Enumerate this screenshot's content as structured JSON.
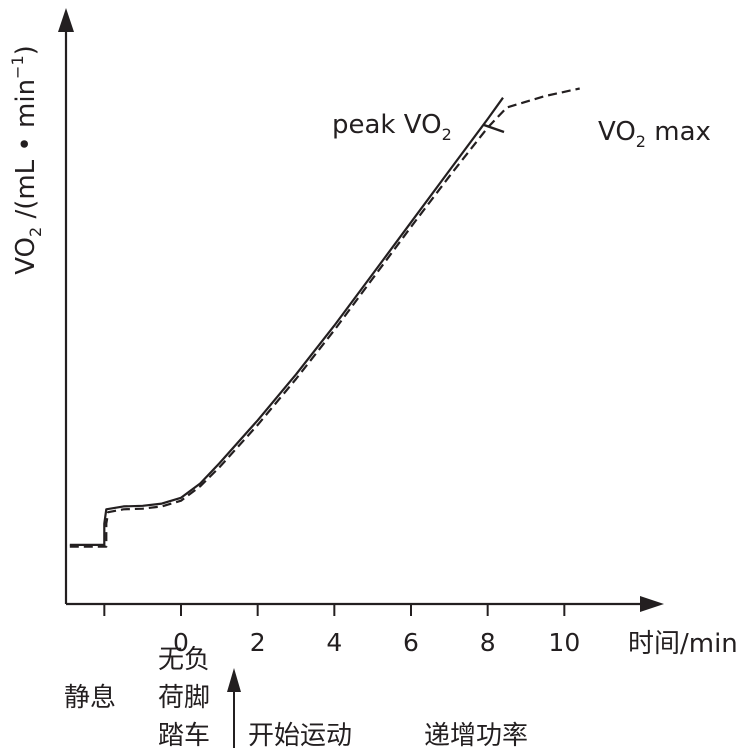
{
  "chart_data": {
    "type": "line",
    "xlabel": "时间/min",
    "ylabel": {
      "main": "VO",
      "sub": "2",
      "unit": " /(mL • min",
      "sup": "−1",
      "close": ")"
    },
    "xlim": [
      -3.0,
      12.6
    ],
    "ylim": [
      0,
      10
    ],
    "x_ticks": [
      0,
      2,
      4,
      6,
      8,
      10
    ],
    "x_tick_labels": [
      "0",
      "2",
      "4",
      "6",
      "8",
      "10"
    ],
    "grid": false,
    "series": [
      {
        "name": "peak VO2",
        "style": "solid",
        "points": [
          [
            -2.9,
            1.03
          ],
          [
            -2.0,
            1.03
          ],
          [
            -2.0,
            1.4
          ],
          [
            -1.95,
            1.65
          ],
          [
            -1.5,
            1.7
          ],
          [
            -1.0,
            1.71
          ],
          [
            -0.5,
            1.75
          ],
          [
            0.0,
            1.85
          ],
          [
            0.5,
            2.1
          ],
          [
            1.0,
            2.45
          ],
          [
            2.0,
            3.2
          ],
          [
            3.0,
            4.0
          ],
          [
            4.0,
            4.85
          ],
          [
            5.0,
            5.75
          ],
          [
            6.0,
            6.65
          ],
          [
            7.0,
            7.55
          ],
          [
            8.0,
            8.45
          ],
          [
            8.4,
            8.82
          ]
        ]
      },
      {
        "name": "VO2 max",
        "style": "dashed",
        "points": [
          [
            -2.9,
            1.0
          ],
          [
            -1.95,
            1.0
          ],
          [
            -1.95,
            1.4
          ],
          [
            -1.9,
            1.6
          ],
          [
            -1.5,
            1.65
          ],
          [
            -1.0,
            1.66
          ],
          [
            -0.5,
            1.7
          ],
          [
            0.0,
            1.8
          ],
          [
            0.5,
            2.05
          ],
          [
            1.0,
            2.38
          ],
          [
            2.0,
            3.12
          ],
          [
            3.0,
            3.92
          ],
          [
            4.0,
            4.77
          ],
          [
            5.0,
            5.67
          ],
          [
            6.0,
            6.57
          ],
          [
            7.0,
            7.45
          ],
          [
            8.0,
            8.3
          ],
          [
            8.5,
            8.65
          ],
          [
            9.5,
            8.85
          ],
          [
            10.4,
            8.98
          ]
        ]
      }
    ],
    "annotations": {
      "peak": {
        "prefix": "peak VO",
        "sub": "2"
      },
      "vmax": {
        "prefix": "VO",
        "sub": "2",
        "suffix": " max"
      }
    },
    "phases": {
      "rest": "静息",
      "unloaded": [
        "无负",
        "荷脚",
        "踏车"
      ],
      "start": "开始运动",
      "ramp": "递增功率"
    }
  }
}
